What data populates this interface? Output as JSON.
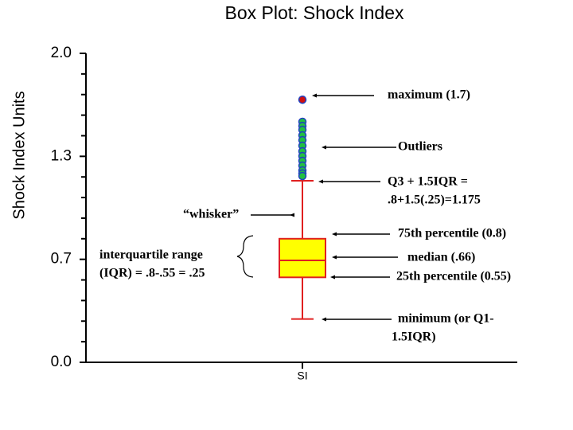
{
  "chart_data": {
    "type": "box",
    "title": "Box Plot: Shock Index",
    "y_label": "Shock Index Units",
    "categories": [
      "SI"
    ],
    "ylim": [
      0,
      2
    ],
    "yticks": [
      {
        "value": 0,
        "label": "0.0"
      },
      {
        "value": 0.6667,
        "label": "0.7"
      },
      {
        "value": 1.3333,
        "label": "1.3"
      },
      {
        "value": 2,
        "label": "2.0"
      }
    ],
    "yminorticks": [
      0.1333,
      0.2667,
      0.4,
      0.5333,
      0.8,
      0.9333,
      1.0667,
      1.2,
      1.4667,
      1.6,
      1.7333,
      1.8667
    ],
    "boxes": [
      {
        "whisker_low": 0.28,
        "q1": 0.55,
        "median": 0.66,
        "q3": 0.8,
        "whisker_high": 1.175,
        "max": 1.7,
        "outliers": [
          1.557,
          1.53,
          1.505,
          1.469,
          1.438,
          1.402,
          1.366,
          1.335,
          1.304,
          1.273,
          1.242,
          1.222,
          1.206
        ],
        "box_color": "#ffff00",
        "line_color": "#e02020",
        "outlier_color": "#22c040",
        "max_color": "#d01010"
      }
    ],
    "annotations": [
      {
        "lines": [
          "maximum (1.7)"
        ]
      },
      {
        "lines": [
          "Outliers"
        ]
      },
      {
        "lines": [
          "Q3 + 1.5IQR =",
          ".8+1.5(.25)=1.175"
        ]
      },
      {
        "lines": [
          "“whisker”"
        ]
      },
      {
        "lines": [
          "75th percentile (0.8)"
        ]
      },
      {
        "lines": [
          "median (.66)"
        ]
      },
      {
        "lines": [
          "25th percentile (0.55)"
        ]
      },
      {
        "lines": [
          "minimum (or Q1-",
          "1.5IQR)"
        ]
      },
      {
        "lines": [
          "interquartile range",
          "(IQR) = .8-.55 = .25"
        ]
      }
    ]
  }
}
